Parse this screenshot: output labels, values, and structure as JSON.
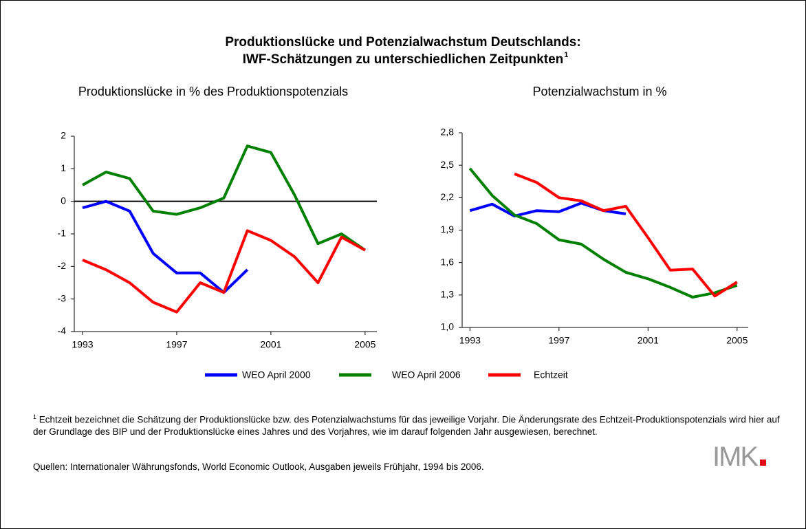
{
  "title": [
    "Produktionslücke und Potenzialwachstum Deutschlands:",
    "IWF-Schätzungen zu unterschiedlichen Zeitpunkten"
  ],
  "title_marker": "1",
  "chart_data": [
    {
      "type": "line",
      "title": "Produktionslücke in % des Produktionspotenzials",
      "x": [
        1993,
        1994,
        1995,
        1996,
        1997,
        1998,
        1999,
        2000,
        2001,
        2002,
        2003,
        2004,
        2005
      ],
      "xlim": [
        1992.65,
        2005.5
      ],
      "xticks": [
        1993,
        1997,
        2001,
        2005
      ],
      "ylim": [
        -4,
        2
      ],
      "yticks": [
        -4,
        -3,
        -2,
        -1,
        0,
        1,
        2
      ],
      "zero_line": true,
      "series": [
        {
          "name": "WEO April 2000",
          "color": "#0000ff",
          "values": [
            -0.2,
            0.0,
            -0.3,
            -1.6,
            -2.2,
            -2.2,
            -2.8,
            -2.1,
            null,
            null,
            null,
            null,
            null
          ]
        },
        {
          "name": "WEO April 2006",
          "color": "#008000",
          "values": [
            0.5,
            0.9,
            0.7,
            -0.3,
            -0.4,
            -0.2,
            0.1,
            1.7,
            1.5,
            0.2,
            -1.3,
            -1.0,
            -1.5
          ]
        },
        {
          "name": "Echtzeit",
          "color": "#ff0000",
          "values": [
            -1.8,
            -2.1,
            -2.5,
            -3.1,
            -3.4,
            -2.5,
            -2.8,
            -0.9,
            -1.2,
            -1.7,
            -2.5,
            -1.1,
            -1.5
          ]
        }
      ]
    },
    {
      "type": "line",
      "title": "Potenzialwachstum in %",
      "x": [
        1993,
        1994,
        1995,
        1996,
        1997,
        1998,
        1999,
        2000,
        2001,
        2002,
        2003,
        2004,
        2005
      ],
      "xlim": [
        1992.65,
        2005.5
      ],
      "xticks": [
        1993,
        1997,
        2001,
        2005
      ],
      "ylim": [
        1.0,
        2.8
      ],
      "yticks": [
        {
          "value": 1.0,
          "label": "1,0"
        },
        {
          "value": 1.3,
          "label": "1,3"
        },
        {
          "value": 1.6,
          "label": "1,6"
        },
        {
          "value": 1.9,
          "label": "1,9"
        },
        {
          "value": 2.2,
          "label": "2,2"
        },
        {
          "value": 2.5,
          "label": "2,5"
        },
        {
          "value": 2.8,
          "label": "2,8"
        }
      ],
      "zero_line": false,
      "series": [
        {
          "name": "WEO April 2000",
          "color": "#0000ff",
          "values": [
            2.08,
            2.14,
            2.03,
            2.08,
            2.07,
            2.15,
            2.08,
            2.05,
            null,
            null,
            null,
            null,
            null
          ]
        },
        {
          "name": "WEO April 2006",
          "color": "#008000",
          "values": [
            2.47,
            2.22,
            2.04,
            1.96,
            1.81,
            1.77,
            1.63,
            1.51,
            1.45,
            1.37,
            1.28,
            1.32,
            1.39
          ]
        },
        {
          "name": "Echtzeit",
          "color": "#ff0000",
          "values": [
            null,
            null,
            2.42,
            2.34,
            2.2,
            2.17,
            2.08,
            2.12,
            1.83,
            1.53,
            1.54,
            1.29,
            1.42
          ]
        }
      ]
    }
  ],
  "footnote": {
    "marker": "1",
    "text": "Echtzeit bezeichnet die Schätzung der Produktionslücke bzw. des Potenzialwachstums für das jeweilige Vorjahr. Die Änderungsrate des Echtzeit-Produktionspotenzials wird hier auf der Grundlage des BIP und der Produktionslücke eines Jahres und des Vorjahres, wie im darauf folgenden Jahr ausgewiesen, berechnet."
  },
  "source": "Quellen: Internationaler Währungsfonds, World Economic Outlook, Ausgaben jeweils Frühjahr, 1994 bis 2006.",
  "logo": "IMK"
}
